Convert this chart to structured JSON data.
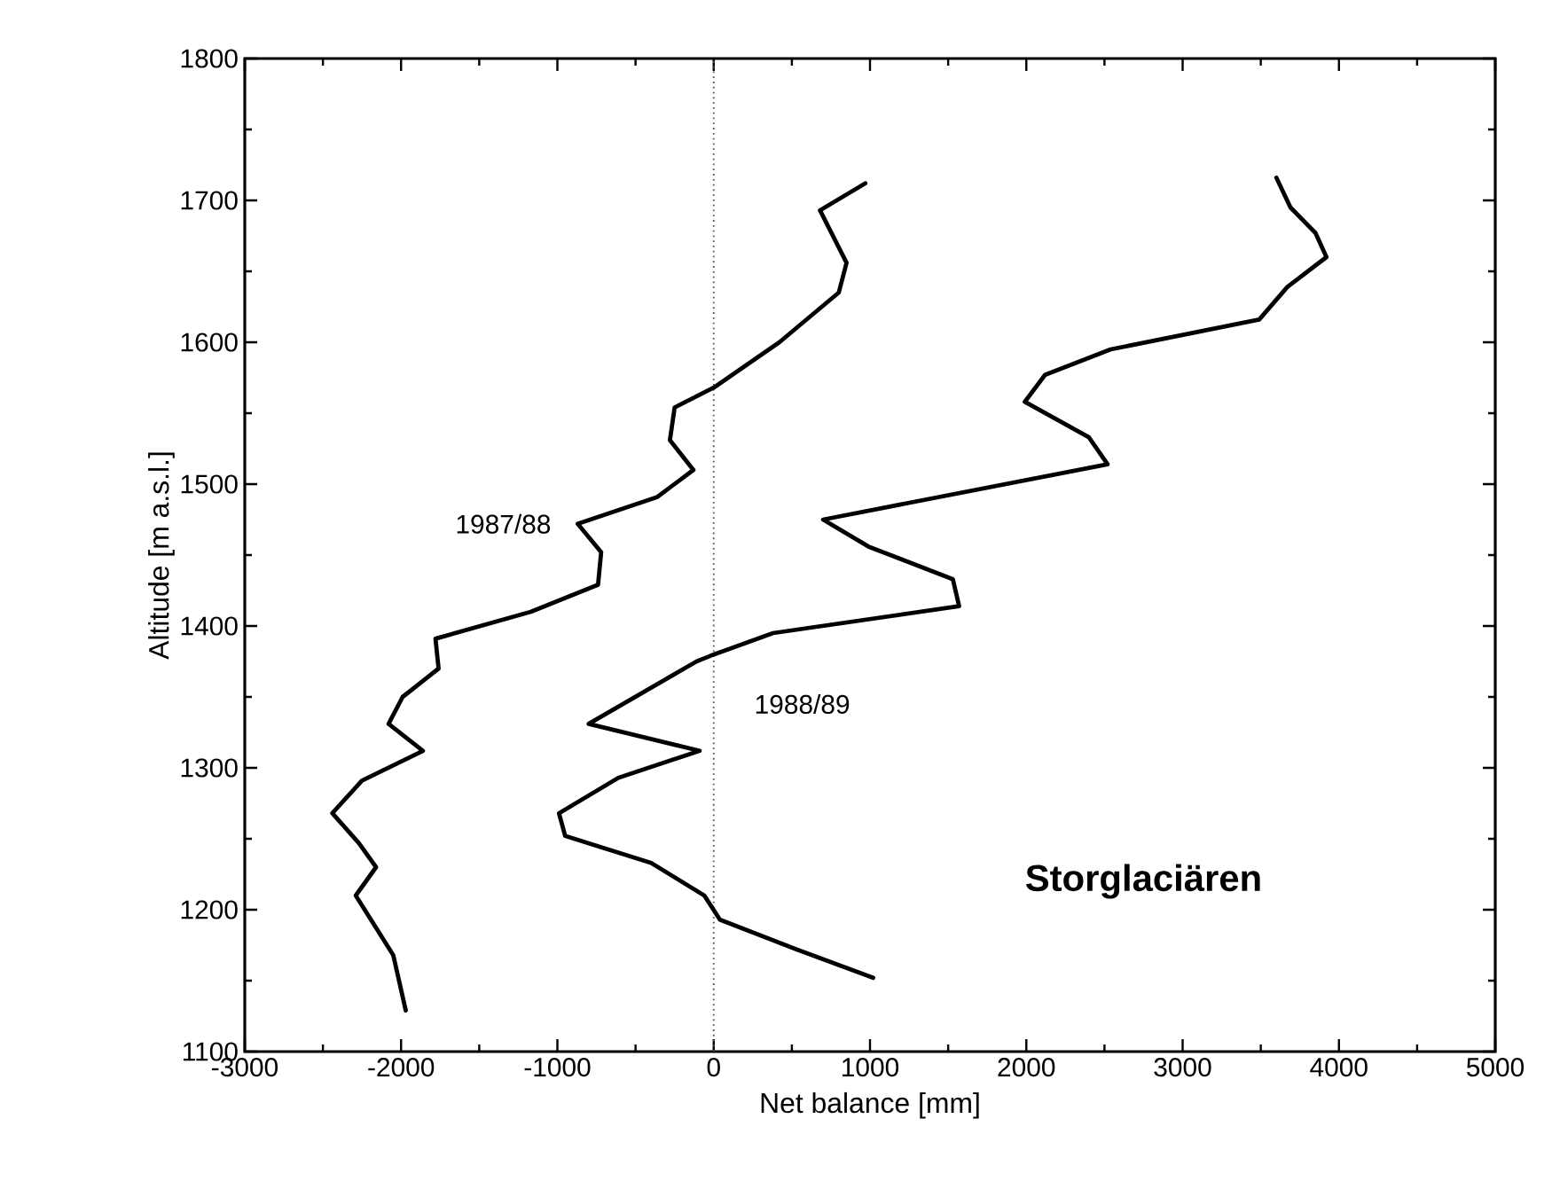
{
  "chart_data": {
    "type": "line",
    "xlabel": "Net balance [mm]",
    "ylabel": "Altitude [m a.s.l.]",
    "xlim": [
      -3000,
      5000
    ],
    "ylim": [
      1100,
      1800
    ],
    "xticks": [
      -3000,
      -2000,
      -1000,
      0,
      1000,
      2000,
      3000,
      4000,
      5000
    ],
    "yticks": [
      1100,
      1200,
      1300,
      1400,
      1500,
      1600,
      1700,
      1800
    ],
    "grid": false,
    "marker": "none",
    "line_style": "solid",
    "ref_lines": [
      {
        "axis": "x",
        "value": 0,
        "color": "#555555",
        "line_style": "dotted"
      }
    ],
    "annotations": [
      "Storglaciären"
    ],
    "series": [
      {
        "name": "1987/88",
        "color": "#000000",
        "x": [
          -1970,
          -2050,
          -2290,
          -2160,
          -2270,
          -2440,
          -2250,
          -1860,
          -2080,
          -1990,
          -1760,
          -1780,
          -1170,
          -740,
          -720,
          -870,
          -360,
          -130,
          -280,
          -250,
          0,
          420,
          800,
          850,
          680,
          970
        ],
        "values": [
          1129,
          1168,
          1210,
          1230,
          1247,
          1268,
          1291,
          1312,
          1331,
          1350,
          1370,
          1391,
          1410,
          1429,
          1452,
          1472,
          1491,
          1510,
          1531,
          1554,
          1568,
          1600,
          1635,
          1656,
          1693,
          1712
        ]
      },
      {
        "name": "1988/89",
        "color": "#000000",
        "x": [
          1020,
          530,
          40,
          -60,
          -400,
          -950,
          -990,
          -610,
          -90,
          -800,
          -110,
          -20,
          380,
          1570,
          1530,
          990,
          700,
          2520,
          2400,
          1990,
          2120,
          2540,
          3490,
          3670,
          3920,
          3850,
          3690,
          3600
        ],
        "values": [
          1152,
          1172,
          1193,
          1210,
          1233,
          1252,
          1268,
          1293,
          1312,
          1331,
          1375,
          1379,
          1395,
          1414,
          1433,
          1456,
          1475,
          1514,
          1533,
          1558,
          1577,
          1595,
          1616,
          1639,
          1660,
          1677,
          1695,
          1716
        ]
      }
    ]
  }
}
